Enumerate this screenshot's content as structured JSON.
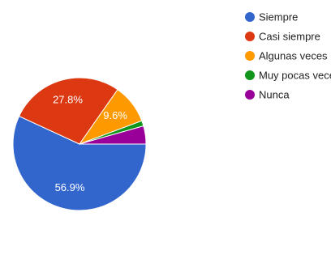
{
  "chart_data": {
    "type": "pie",
    "title": "",
    "legend_position": "right",
    "slices": [
      {
        "label": "Siempre",
        "value": 56.9,
        "value_label": "56.9%",
        "color": "#3366cc"
      },
      {
        "label": "Casi siempre",
        "value": 27.8,
        "value_label": "27.8%",
        "color": "#dc3912"
      },
      {
        "label": "Algunas veces",
        "value": 9.6,
        "value_label": "9.6%",
        "color": "#ff9900"
      },
      {
        "label": "Muy pocas veces",
        "value": 1.3,
        "value_label": "",
        "color": "#109618"
      },
      {
        "label": "Nunca",
        "value": 4.4,
        "value_label": "",
        "color": "#990099"
      }
    ]
  }
}
